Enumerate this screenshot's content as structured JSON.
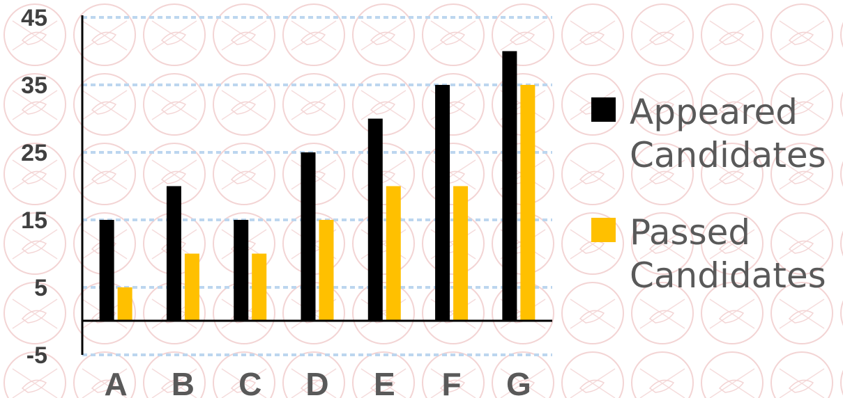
{
  "chart_data": {
    "type": "bar",
    "categories": [
      "A",
      "B",
      "C",
      "D",
      "E",
      "F",
      "G"
    ],
    "series": [
      {
        "name": "Appeared Candidates",
        "values": [
          15,
          20,
          15,
          25,
          30,
          35,
          40
        ],
        "color": "#000000"
      },
      {
        "name": "Passed Candidates",
        "values": [
          5,
          10,
          10,
          15,
          20,
          20,
          35
        ],
        "color": "#FFC000"
      }
    ],
    "title": "",
    "xlabel": "",
    "ylabel": "",
    "ylim": [
      -5,
      45
    ],
    "yticks": [
      "45",
      "35",
      "25",
      "15",
      "5",
      "-5"
    ],
    "grid": true,
    "legend_position": "right"
  }
}
